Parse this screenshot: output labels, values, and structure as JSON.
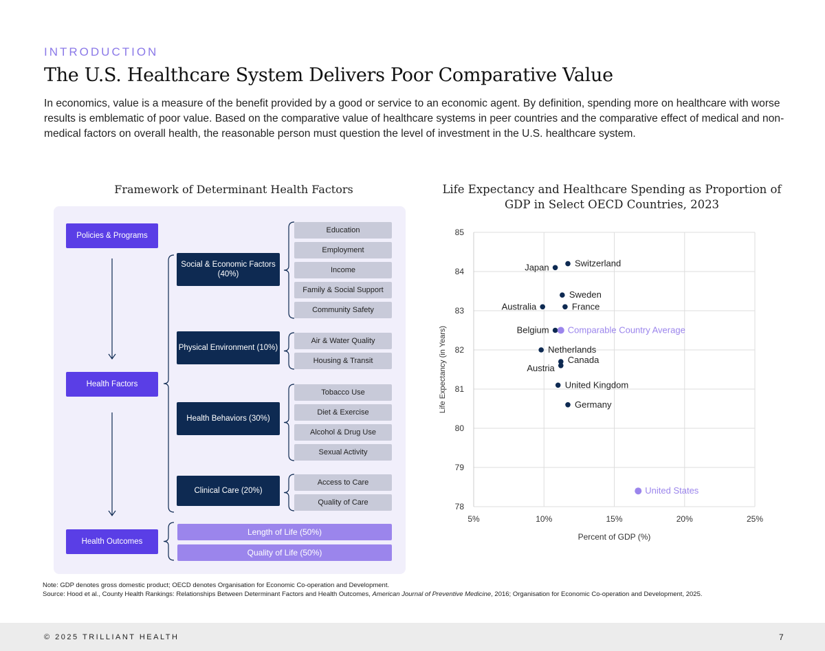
{
  "header": {
    "kicker": "INTRODUCTION",
    "title": "The U.S. Healthcare System Delivers Poor Comparative Value",
    "intro": "In economics, value is a measure of the benefit provided by a good or service to an economic agent. By definition, spending more on healthcare with worse results is emblematic of poor value. Based on the comparative value of healthcare systems in peer countries and the comparative effect of medical and non-medical factors on overall health, the reasonable person must question the level of investment in the U.S. healthcare system."
  },
  "diagram": {
    "title": "Framework of Determinant Health Factors",
    "stages": [
      "Policies & Programs",
      "Health Factors",
      "Health Outcomes"
    ],
    "factors": [
      {
        "label": "Social & Economic Factors (40%)",
        "items": [
          "Education",
          "Employment",
          "Income",
          "Family & Social Support",
          "Community Safety"
        ]
      },
      {
        "label": "Physical Environment (10%)",
        "items": [
          "Air & Water Quality",
          "Housing & Transit"
        ]
      },
      {
        "label": "Health Behaviors (30%)",
        "items": [
          "Tobacco Use",
          "Diet & Exercise",
          "Alcohol & Drug Use",
          "Sexual Activity"
        ]
      },
      {
        "label": "Clinical Care (20%)",
        "items": [
          "Access to Care",
          "Quality of Care"
        ]
      }
    ],
    "outcomes": [
      "Length of Life (50%)",
      "Quality of Life (50%)"
    ]
  },
  "chart_data": {
    "type": "scatter",
    "title": "Life Expectancy and Healthcare Spending as Proportion of GDP in Select OECD Countries, 2023",
    "xlabel": "Percent of GDP (%)",
    "ylabel": "Life Expectancy (in Years)",
    "xlim": [
      5,
      25
    ],
    "ylim": [
      78,
      85
    ],
    "xticks": [
      "5%",
      "10%",
      "15%",
      "20%",
      "25%"
    ],
    "yticks": [
      "78",
      "79",
      "80",
      "81",
      "82",
      "83",
      "84",
      "85"
    ],
    "grid": true,
    "colors": {
      "country": "#0e2a52",
      "highlight": "#9b85ec"
    },
    "points": [
      {
        "name": "Switzerland",
        "x": 11.7,
        "y": 84.2
      },
      {
        "name": "Japan",
        "x": 10.8,
        "y": 84.1
      },
      {
        "name": "Sweden",
        "x": 11.3,
        "y": 83.4
      },
      {
        "name": "Australia",
        "x": 9.9,
        "y": 83.1
      },
      {
        "name": "France",
        "x": 11.5,
        "y": 83.1
      },
      {
        "name": "Belgium",
        "x": 10.8,
        "y": 82.5
      },
      {
        "name": "Comparable Country Average",
        "x": 11.2,
        "y": 82.5,
        "highlight": true
      },
      {
        "name": "Netherlands",
        "x": 9.8,
        "y": 82.0
      },
      {
        "name": "Canada",
        "x": 11.2,
        "y": 81.7
      },
      {
        "name": "Austria",
        "x": 11.2,
        "y": 81.6
      },
      {
        "name": "United Kingdom",
        "x": 11.0,
        "y": 81.1
      },
      {
        "name": "Germany",
        "x": 11.7,
        "y": 80.6
      },
      {
        "name": "United States",
        "x": 16.7,
        "y": 78.4,
        "highlight": true
      }
    ]
  },
  "notes": {
    "note": "Note: GDP denotes gross domestic product; OECD denotes Organisation for Economic Co-operation and Development.",
    "source_prefix": "Source: Hood et al., County Health Rankings: Relationships Between Determinant Factors and Health Outcomes, ",
    "source_journal": "American Journal of Preventive Medicine",
    "source_suffix": ", 2016; Organisation for Economic Co-operation and Development, 2025."
  },
  "footer": {
    "copyright": "© 2025 TRILLIANT HEALTH",
    "page": "7"
  }
}
